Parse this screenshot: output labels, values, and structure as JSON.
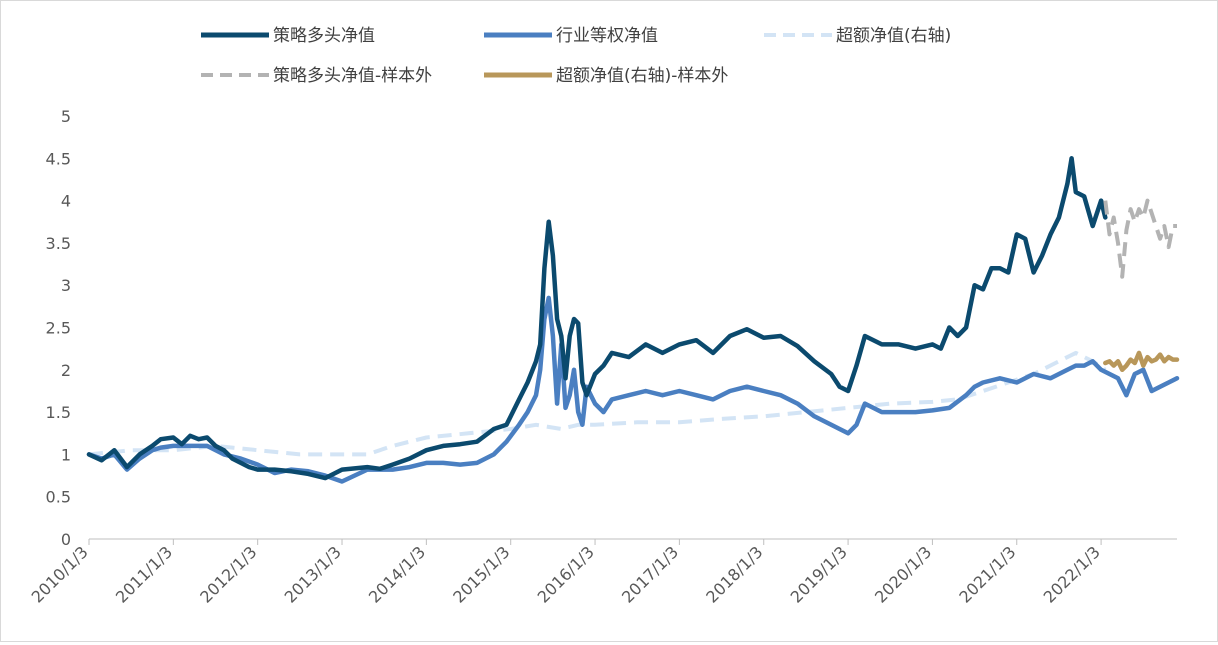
{
  "chart_data": {
    "type": "line",
    "title": "",
    "xlabel": "",
    "ylabel": "",
    "ylim": [
      0,
      5
    ],
    "yticks": [
      "0",
      "0.5",
      "1",
      "1.5",
      "2",
      "2.5",
      "3",
      "3.5",
      "4",
      "4.5",
      "5"
    ],
    "x_tick_labels": [
      "2010/1/3",
      "2011/1/3",
      "2012/1/3",
      "2013/1/3",
      "2014/1/3",
      "2015/1/3",
      "2016/1/3",
      "2017/1/3",
      "2018/1/3",
      "2019/1/3",
      "2020/1/3",
      "2021/1/3",
      "2022/1/3"
    ],
    "x_start": 2010.0,
    "x_end": 2022.9,
    "grid": false,
    "legend_position": "top",
    "series": [
      {
        "name": "策略多头净值",
        "color": "#0b4a6e",
        "style": "solid",
        "x": [
          2010.0,
          2010.15,
          2010.3,
          2010.45,
          2010.6,
          2010.75,
          2010.85,
          2011.0,
          2011.1,
          2011.2,
          2011.3,
          2011.4,
          2011.5,
          2011.6,
          2011.7,
          2011.8,
          2011.9,
          2012.0,
          2012.2,
          2012.4,
          2012.6,
          2012.8,
          2013.0,
          2013.3,
          2013.45,
          2013.6,
          2013.8,
          2014.0,
          2014.2,
          2014.4,
          2014.6,
          2014.8,
          2014.95,
          2015.1,
          2015.2,
          2015.3,
          2015.35,
          2015.4,
          2015.45,
          2015.5,
          2015.55,
          2015.6,
          2015.65,
          2015.7,
          2015.75,
          2015.8,
          2015.85,
          2015.9,
          2016.0,
          2016.1,
          2016.2,
          2016.4,
          2016.6,
          2016.8,
          2017.0,
          2017.2,
          2017.4,
          2017.6,
          2017.8,
          2018.0,
          2018.2,
          2018.4,
          2018.6,
          2018.8,
          2018.9,
          2019.0,
          2019.1,
          2019.2,
          2019.4,
          2019.6,
          2019.8,
          2020.0,
          2020.1,
          2020.2,
          2020.3,
          2020.4,
          2020.5,
          2020.6,
          2020.7,
          2020.8,
          2020.9,
          2021.0,
          2021.1,
          2021.2,
          2021.3,
          2021.4,
          2021.5,
          2021.6,
          2021.65,
          2021.7,
          2021.8,
          2021.9,
          2022.0,
          2022.05
        ],
        "y": [
          1.0,
          0.93,
          1.05,
          0.85,
          1.0,
          1.1,
          1.18,
          1.2,
          1.12,
          1.22,
          1.18,
          1.2,
          1.1,
          1.05,
          0.95,
          0.9,
          0.85,
          0.82,
          0.82,
          0.8,
          0.77,
          0.72,
          0.82,
          0.85,
          0.83,
          0.88,
          0.95,
          1.05,
          1.1,
          1.12,
          1.15,
          1.3,
          1.35,
          1.65,
          1.85,
          2.1,
          2.3,
          3.2,
          3.75,
          3.35,
          2.6,
          2.4,
          1.9,
          2.4,
          2.6,
          2.55,
          1.85,
          1.7,
          1.95,
          2.05,
          2.2,
          2.15,
          2.3,
          2.2,
          2.3,
          2.35,
          2.2,
          2.4,
          2.48,
          2.38,
          2.4,
          2.28,
          2.1,
          1.95,
          1.8,
          1.75,
          2.05,
          2.4,
          2.3,
          2.3,
          2.25,
          2.3,
          2.25,
          2.5,
          2.4,
          2.5,
          3.0,
          2.95,
          3.2,
          3.2,
          3.15,
          3.6,
          3.55,
          3.15,
          3.35,
          3.6,
          3.8,
          4.2,
          4.5,
          4.1,
          4.05,
          3.7,
          4.0,
          3.8
        ]
      },
      {
        "name": "行业等权净值",
        "color": "#4a7fc1",
        "style": "solid",
        "x": [
          2010.0,
          2010.15,
          2010.3,
          2010.45,
          2010.6,
          2010.75,
          2010.85,
          2011.0,
          2011.2,
          2011.4,
          2011.6,
          2011.8,
          2012.0,
          2012.2,
          2012.4,
          2012.6,
          2012.8,
          2013.0,
          2013.3,
          2013.6,
          2013.8,
          2014.0,
          2014.2,
          2014.4,
          2014.6,
          2014.8,
          2014.95,
          2015.1,
          2015.2,
          2015.3,
          2015.35,
          2015.4,
          2015.45,
          2015.5,
          2015.55,
          2015.6,
          2015.65,
          2015.7,
          2015.75,
          2015.8,
          2015.85,
          2015.9,
          2016.0,
          2016.1,
          2016.2,
          2016.4,
          2016.6,
          2016.8,
          2017.0,
          2017.2,
          2017.4,
          2017.6,
          2017.8,
          2018.0,
          2018.2,
          2018.4,
          2018.6,
          2018.8,
          2018.9,
          2019.0,
          2019.1,
          2019.2,
          2019.4,
          2019.6,
          2019.8,
          2020.0,
          2020.2,
          2020.4,
          2020.5,
          2020.6,
          2020.8,
          2021.0,
          2021.2,
          2021.4,
          2021.6,
          2021.7,
          2021.8,
          2021.9,
          2022.0,
          2022.2,
          2022.3,
          2022.4,
          2022.5,
          2022.6,
          2022.7,
          2022.8,
          2022.9
        ],
        "y": [
          1.0,
          0.95,
          1.0,
          0.82,
          0.95,
          1.05,
          1.08,
          1.1,
          1.1,
          1.1,
          1.0,
          0.95,
          0.88,
          0.78,
          0.82,
          0.8,
          0.75,
          0.68,
          0.82,
          0.82,
          0.85,
          0.9,
          0.9,
          0.88,
          0.9,
          1.0,
          1.15,
          1.35,
          1.5,
          1.7,
          2.0,
          2.6,
          2.85,
          2.4,
          1.6,
          2.3,
          1.55,
          1.7,
          2.0,
          1.5,
          1.35,
          1.8,
          1.6,
          1.5,
          1.65,
          1.7,
          1.75,
          1.7,
          1.75,
          1.7,
          1.65,
          1.75,
          1.8,
          1.75,
          1.7,
          1.6,
          1.45,
          1.35,
          1.3,
          1.25,
          1.35,
          1.6,
          1.5,
          1.5,
          1.5,
          1.52,
          1.55,
          1.7,
          1.8,
          1.85,
          1.9,
          1.85,
          1.95,
          1.9,
          2.0,
          2.05,
          2.05,
          2.1,
          2.0,
          1.9,
          1.7,
          1.95,
          2.0,
          1.75,
          1.8,
          1.85,
          1.9
        ]
      },
      {
        "name": "超额净值(右轴)",
        "color": "#d3e4f5",
        "style": "dashed",
        "x": [
          2010.0,
          2010.5,
          2011.0,
          2011.5,
          2012.0,
          2012.5,
          2013.0,
          2013.3,
          2013.6,
          2014.0,
          2014.5,
          2015.0,
          2015.3,
          2015.6,
          2015.8,
          2016.0,
          2016.5,
          2017.0,
          2017.5,
          2018.0,
          2018.5,
          2019.0,
          2019.5,
          2020.0,
          2020.3,
          2020.6,
          2020.9,
          2021.2,
          2021.5,
          2021.7,
          2021.9,
          2022.05
        ],
        "y": [
          1.0,
          1.05,
          1.05,
          1.1,
          1.05,
          1.0,
          1.0,
          1.0,
          1.1,
          1.2,
          1.25,
          1.3,
          1.35,
          1.3,
          1.35,
          1.35,
          1.38,
          1.38,
          1.42,
          1.45,
          1.5,
          1.55,
          1.6,
          1.62,
          1.65,
          1.75,
          1.85,
          1.95,
          2.1,
          2.2,
          2.1,
          2.0
        ]
      },
      {
        "name": "策略多头净值-样本外",
        "color": "#b3b3b3",
        "style": "dashed",
        "x": [
          2022.05,
          2022.1,
          2022.15,
          2022.2,
          2022.25,
          2022.3,
          2022.35,
          2022.4,
          2022.45,
          2022.5,
          2022.55,
          2022.6,
          2022.65,
          2022.7,
          2022.75,
          2022.8,
          2022.85,
          2022.9
        ],
        "y": [
          4.0,
          3.6,
          3.8,
          3.5,
          3.1,
          3.65,
          3.9,
          3.75,
          3.9,
          3.8,
          4.0,
          3.85,
          3.7,
          3.55,
          3.7,
          3.45,
          3.7,
          3.7
        ]
      },
      {
        "name": "超额净值(右轴)-样本外",
        "color": "#b8975a",
        "style": "solid",
        "x": [
          2022.05,
          2022.1,
          2022.15,
          2022.2,
          2022.25,
          2022.3,
          2022.35,
          2022.4,
          2022.45,
          2022.5,
          2022.55,
          2022.6,
          2022.65,
          2022.7,
          2022.75,
          2022.8,
          2022.85,
          2022.9
        ],
        "y": [
          2.08,
          2.1,
          2.05,
          2.1,
          2.0,
          2.05,
          2.12,
          2.08,
          2.2,
          2.05,
          2.15,
          2.1,
          2.12,
          2.18,
          2.1,
          2.15,
          2.12,
          2.12
        ]
      }
    ]
  }
}
